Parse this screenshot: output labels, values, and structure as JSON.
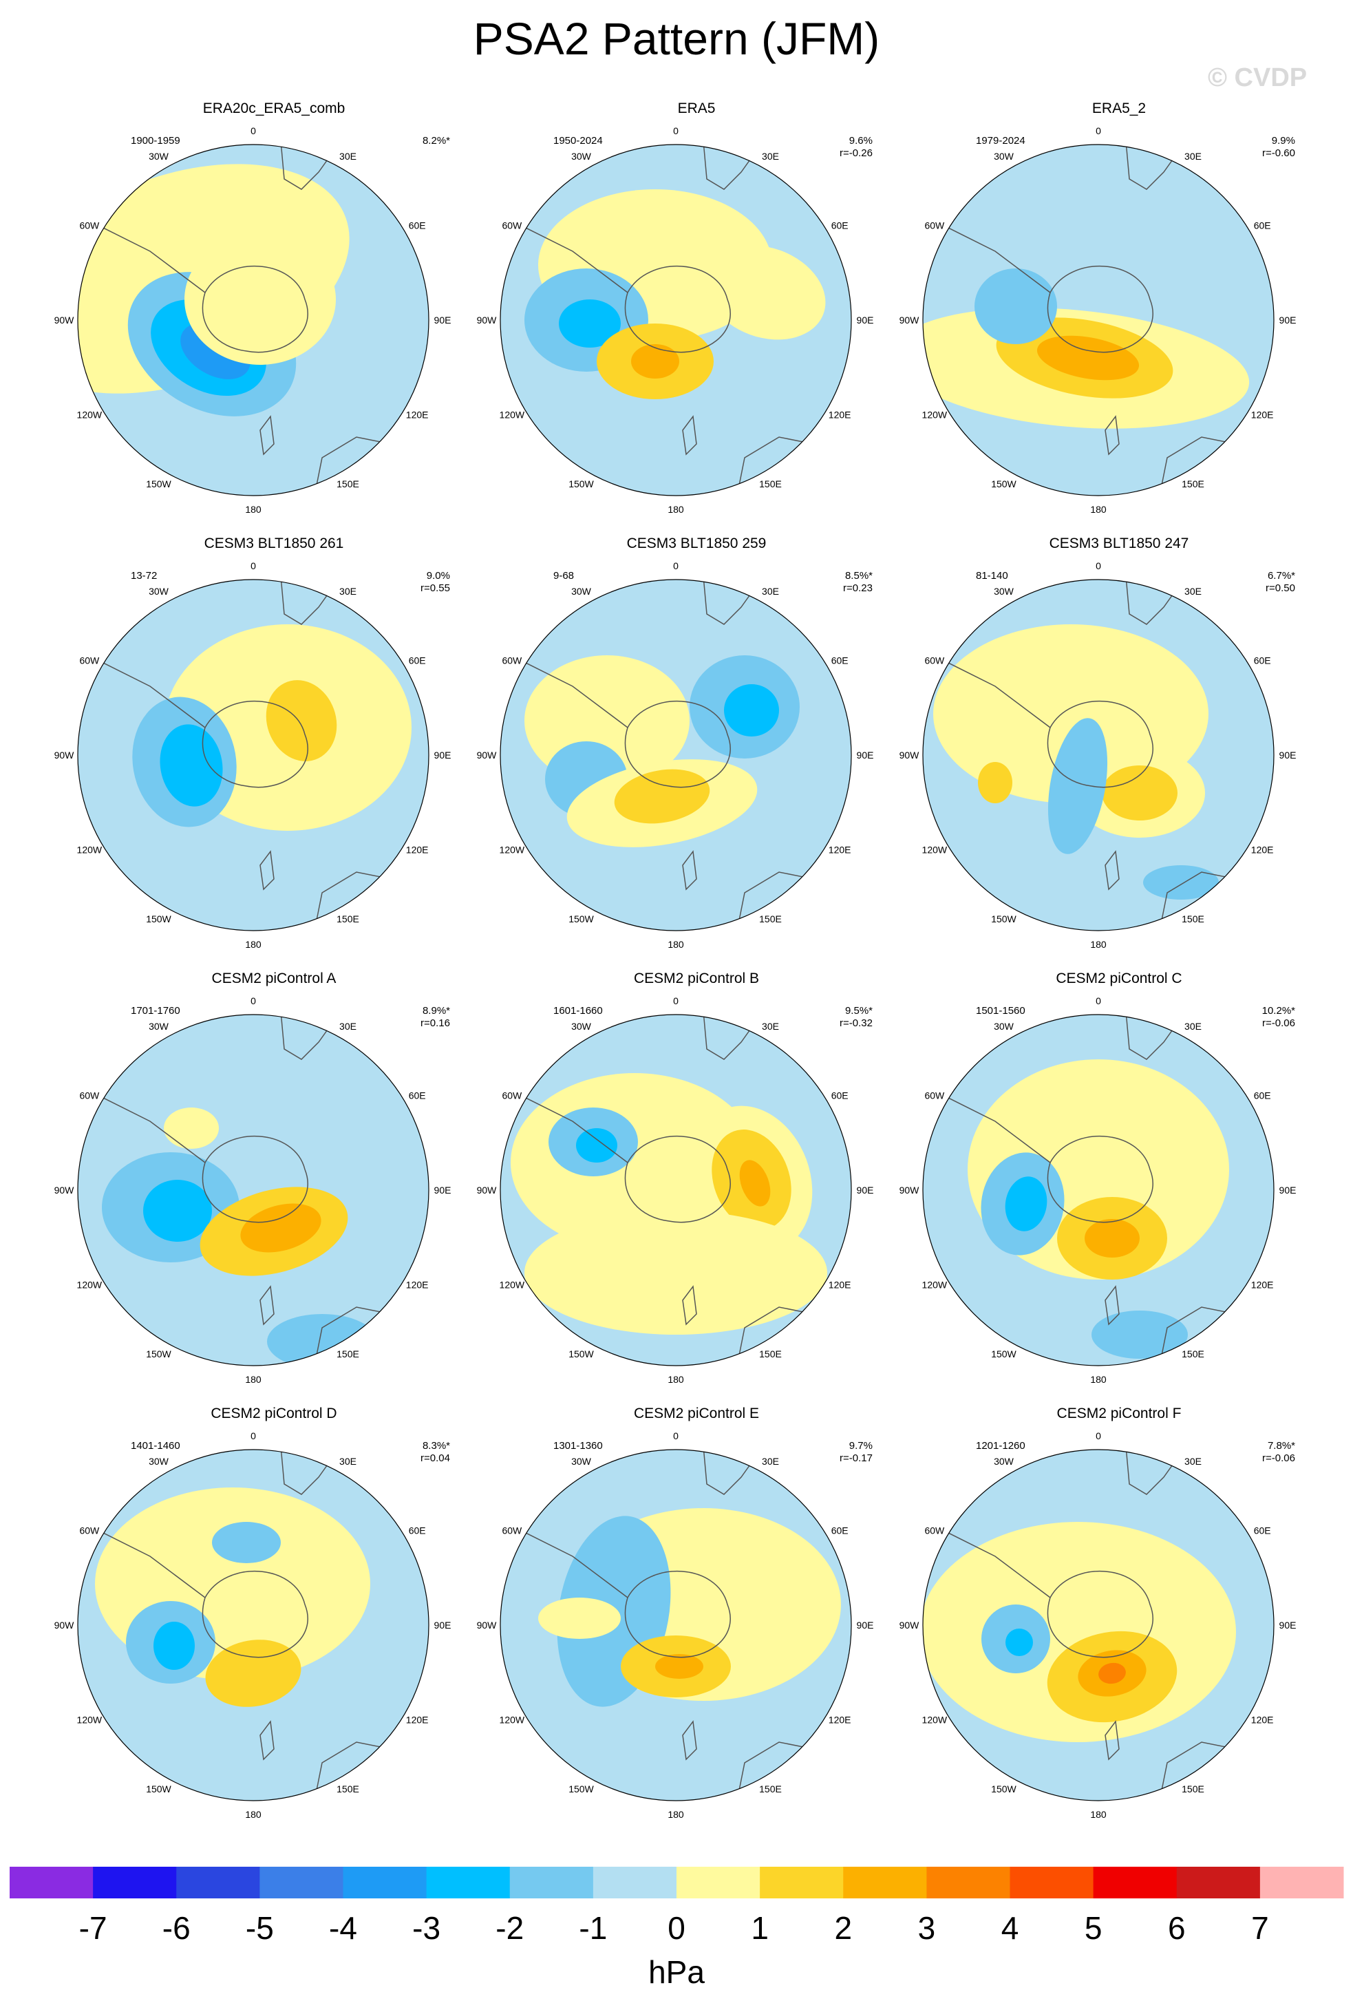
{
  "title": "PSA2 Pattern (JFM)",
  "watermark": "© CVDP",
  "map_labels": {
    "lon_0": "0",
    "lon_30e": "30E",
    "lon_60e": "60E",
    "lon_90e": "90E",
    "lon_120e": "120E",
    "lon_150e": "150E",
    "lon_180": "180",
    "lon_150w": "150W",
    "lon_120w": "120W",
    "lon_90w": "90W",
    "lon_60w": "60W",
    "lon_30w": "30W"
  },
  "colors": {
    "background": "#ffffff",
    "ocean_default": "#b3dff2",
    "coast": "#555555"
  },
  "colorbar": {
    "units": "hPa",
    "ticks": [
      "-7",
      "-6",
      "-5",
      "-4",
      "-3",
      "-2",
      "-1",
      "0",
      "1",
      "2",
      "3",
      "4",
      "5",
      "6",
      "7"
    ],
    "colors": [
      "#8a2be2",
      "#1e14f0",
      "#2a46e0",
      "#3b7fe8",
      "#1e9bf5",
      "#00bfff",
      "#75c9f0",
      "#b3dff2",
      "#fffa9e",
      "#fcd529",
      "#fcb000",
      "#fc8200",
      "#fc4f00",
      "#f00000",
      "#cc1a1a",
      "#ffb3b3"
    ]
  },
  "panels": [
    {
      "title": "ERA20c_ERA5_comb",
      "years": "1900-1959",
      "pct": "8.2%*",
      "r": ""
    },
    {
      "title": "ERA5",
      "years": "1950-2024",
      "pct": "9.6%",
      "r": "r=-0.26"
    },
    {
      "title": "ERA5_2",
      "years": "1979-2024",
      "pct": "9.9%",
      "r": "r=-0.60"
    },
    {
      "title": "CESM3 BLT1850 261",
      "years": "13-72",
      "pct": "9.0%",
      "r": "r=0.55"
    },
    {
      "title": "CESM3 BLT1850 259",
      "years": "9-68",
      "pct": "8.5%*",
      "r": "r=0.23"
    },
    {
      "title": "CESM3 BLT1850 247",
      "years": "81-140",
      "pct": "6.7%*",
      "r": "r=0.50"
    },
    {
      "title": "CESM2 piControl A",
      "years": "1701-1760",
      "pct": "8.9%*",
      "r": "r=0.16"
    },
    {
      "title": "CESM2 piControl B",
      "years": "1601-1660",
      "pct": "9.5%*",
      "r": "r=-0.32"
    },
    {
      "title": "CESM2 piControl C",
      "years": "1501-1560",
      "pct": "10.2%*",
      "r": "r=-0.06"
    },
    {
      "title": "CESM2 piControl D",
      "years": "1401-1460",
      "pct": "8.3%*",
      "r": "r=0.04"
    },
    {
      "title": "CESM2 piControl E",
      "years": "1301-1360",
      "pct": "9.7%",
      "r": "r=-0.17"
    },
    {
      "title": "CESM2 piControl F",
      "years": "1201-1260",
      "pct": "7.8%*",
      "r": "r=-0.06"
    }
  ]
}
